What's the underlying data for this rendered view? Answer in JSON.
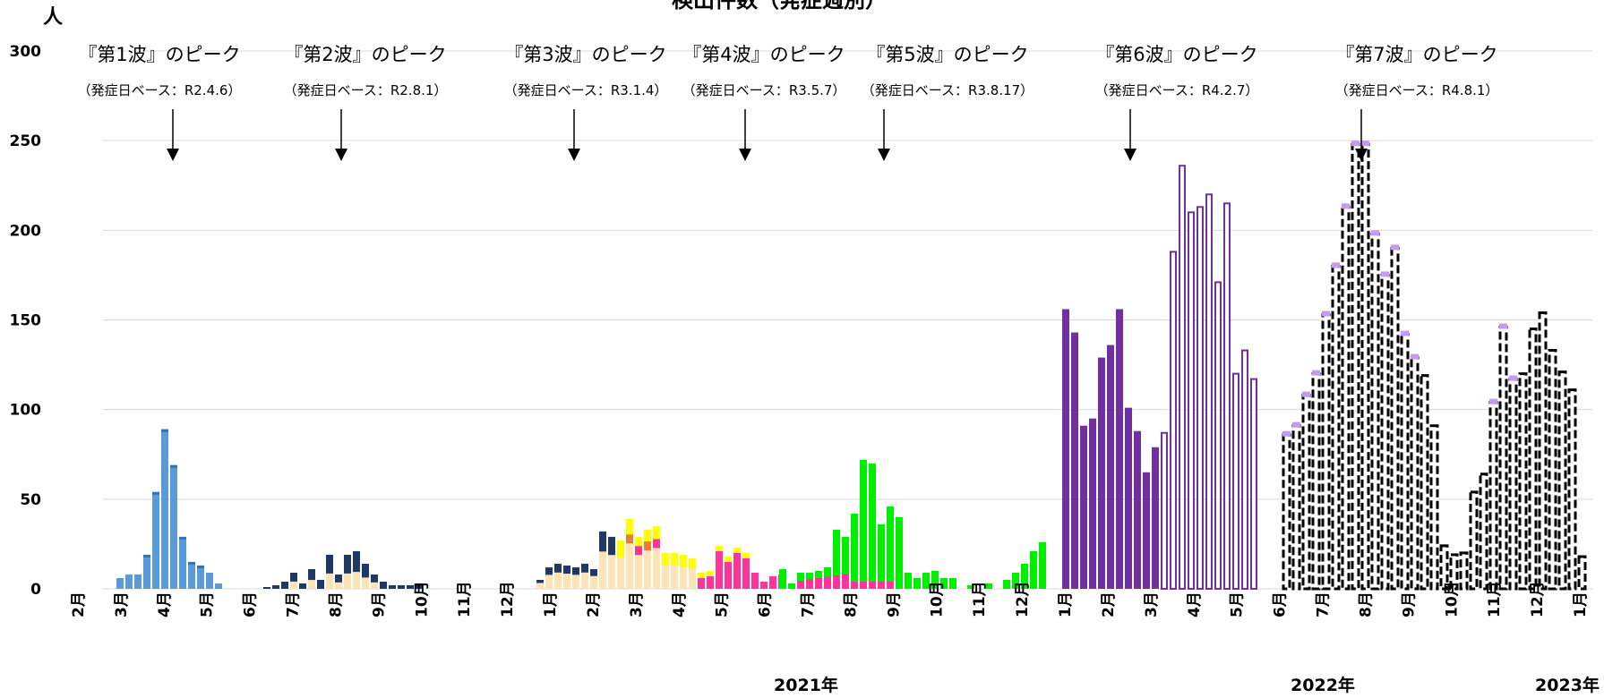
{
  "chart_data": {
    "type": "bar",
    "title": "検出件数（発症週別）",
    "ylabel": "人",
    "ylim": [
      0,
      300
    ],
    "yticks": [
      0,
      50,
      100,
      150,
      200,
      250,
      300
    ],
    "grid": true,
    "month_labels": [
      "2月",
      "3月",
      "4月",
      "5月",
      "6月",
      "7月",
      "8月",
      "9月",
      "10月",
      "11月",
      "12月",
      "1月",
      "2月",
      "3月",
      "4月",
      "5月",
      "6月",
      "7月",
      "8月",
      "9月",
      "10月",
      "11月",
      "12月",
      "1月",
      "2月",
      "3月",
      "4月",
      "5月",
      "6月",
      "7月",
      "8月",
      "9月",
      "10月",
      "11月",
      "12月",
      "1月"
    ],
    "year_labels": [
      "2021年",
      "2022年",
      "2023年"
    ],
    "waves": [
      {
        "title": "『第1波』のピーク",
        "sub": "（発症日ベース：R2.4.6）"
      },
      {
        "title": "『第2波』のピーク",
        "sub": "（発症日ベース：R2.8.1）"
      },
      {
        "title": "『第3波』のピーク",
        "sub": "（発症日ベース：R3.1.4）"
      },
      {
        "title": "『第4波』のピーク",
        "sub": "（発症日ベース：R3.5.7）"
      },
      {
        "title": "『第5波』のピーク",
        "sub": "（発症日ベース：R3.8.17）"
      },
      {
        "title": "『第6波』のピーク",
        "sub": "（発症日ベース：R4.2.7）"
      },
      {
        "title": "『第7波』のピーク",
        "sub": "（発症日ベース：R4.8.1）"
      }
    ],
    "colors": {
      "wave1": "#5b9bd5",
      "wave2": "#1f3864",
      "wave2_light": "#fce4b6",
      "wave3_yellow": "#ffff00",
      "wave3_orange": "#ed7d31",
      "wave4": "#ff3399",
      "wave5": "#00ee00",
      "wave6": "#7030a0",
      "wave7_top": "#c39bf5",
      "wave7_outline": "#000000",
      "grid": "#d9d9d9"
    },
    "series": [
      {
        "group": "wave1",
        "values": [
          6,
          8,
          8,
          19,
          54,
          89,
          69,
          29,
          15,
          13,
          9,
          3
        ]
      },
      {
        "group": "wave2",
        "values": [
          0,
          1,
          2,
          4,
          9,
          3,
          11,
          5,
          19,
          8,
          19,
          21,
          14,
          8,
          4,
          2,
          2,
          2,
          3
        ]
      },
      {
        "group": "wave3",
        "values": [
          5,
          12,
          14,
          13,
          12,
          14,
          11,
          32,
          29,
          27,
          39,
          29,
          33,
          35,
          20,
          20,
          19,
          17
        ]
      },
      {
        "group": "wave4",
        "values": [
          9,
          10,
          24,
          18,
          23,
          20,
          9,
          4,
          7,
          8
        ]
      },
      {
        "group": "wave5",
        "values": [
          11,
          3,
          9,
          9,
          10,
          12,
          33,
          29,
          42,
          72,
          70,
          36,
          46,
          40,
          9,
          6,
          9,
          10,
          6,
          6,
          0,
          2,
          0,
          3,
          0,
          5,
          9,
          14,
          21,
          26
        ]
      },
      {
        "group": "wave6",
        "values": [
          156,
          143,
          91,
          95,
          129,
          136,
          156,
          101,
          88,
          65,
          79,
          87,
          188,
          236,
          210,
          213,
          220,
          171,
          215,
          120,
          133,
          117
        ]
      },
      {
        "group": "wave7",
        "values": [
          86,
          91,
          108,
          120,
          153,
          180,
          213,
          248,
          248,
          198,
          175,
          190,
          142,
          129,
          119,
          91,
          24,
          19,
          20,
          54,
          64,
          104,
          146,
          117,
          120,
          145,
          154,
          133,
          121,
          111,
          18
        ]
      }
    ]
  }
}
